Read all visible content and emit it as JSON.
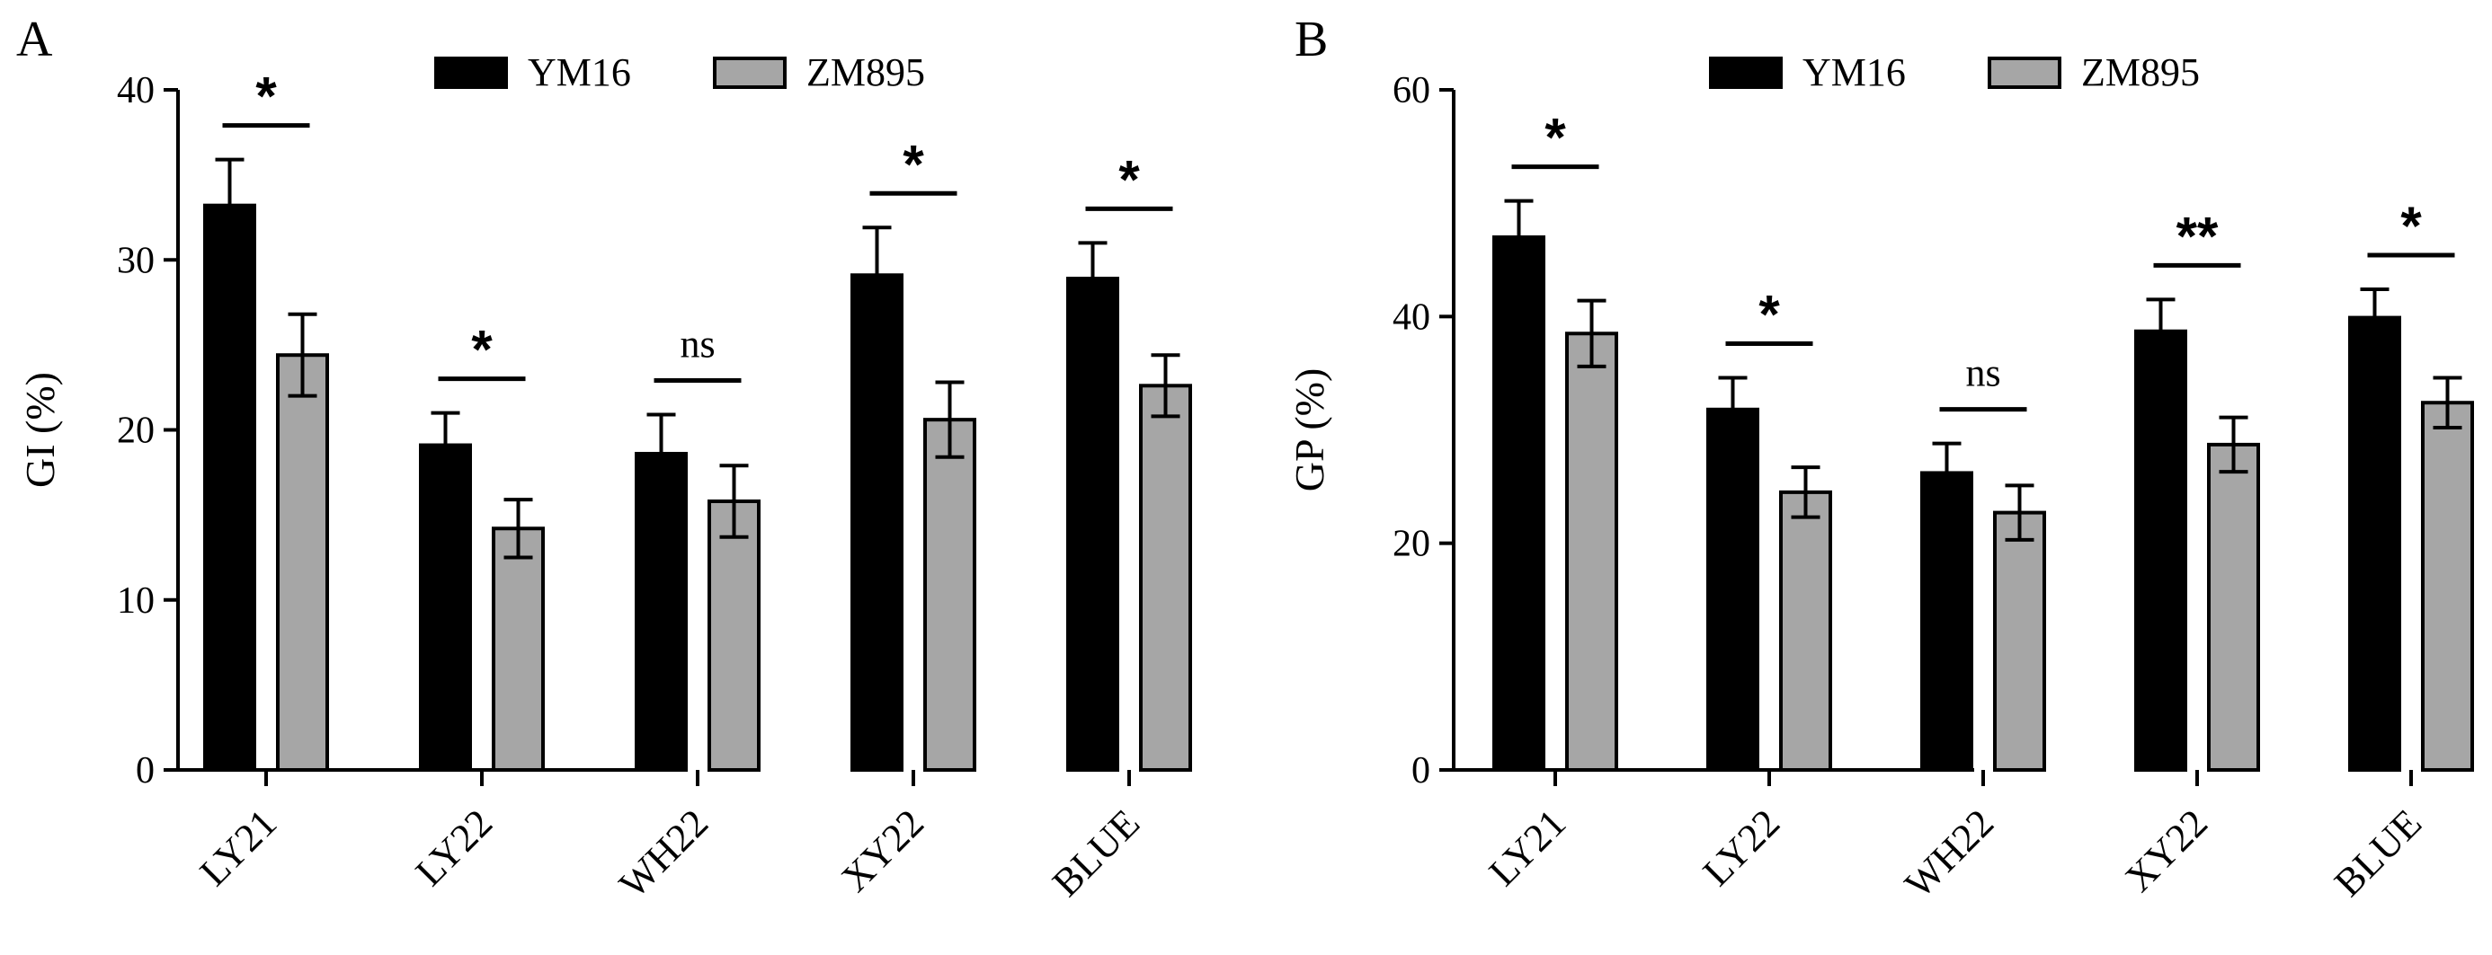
{
  "chart_data": [
    {
      "type": "bar",
      "panel_label": "A",
      "title": "",
      "xlabel": "",
      "ylabel": "GI (%)",
      "ylim": [
        0,
        40
      ],
      "yticks": [
        0,
        10,
        20,
        30,
        40
      ],
      "grid": false,
      "legend_position": "top",
      "categories": [
        "LY21",
        "LY22",
        "WH22",
        "XY22",
        "BLUE"
      ],
      "series": [
        {
          "name": "YM16",
          "color": "#000000",
          "values": [
            33.2,
            19.1,
            18.6,
            29.1,
            28.9
          ],
          "errors": [
            2.7,
            1.9,
            2.3,
            2.8,
            2.1
          ]
        },
        {
          "name": "ZM895",
          "color": "#a6a6a6",
          "values": [
            24.4,
            14.2,
            15.8,
            20.6,
            22.6
          ],
          "errors": [
            2.4,
            1.7,
            2.1,
            2.2,
            1.8
          ]
        }
      ],
      "significance": [
        "*",
        "*",
        "ns",
        "*",
        "*"
      ]
    },
    {
      "type": "bar",
      "panel_label": "B",
      "title": "",
      "xlabel": "",
      "ylabel": "GP (%)",
      "ylim": [
        0,
        60
      ],
      "yticks": [
        0,
        20,
        40,
        60
      ],
      "grid": false,
      "legend_position": "top",
      "categories": [
        "LY21",
        "LY22",
        "WH22",
        "XY22",
        "BLUE"
      ],
      "series": [
        {
          "name": "YM16",
          "color": "#000000",
          "values": [
            47,
            31.8,
            26.2,
            38.7,
            39.9
          ],
          "errors": [
            3.2,
            2.8,
            2.6,
            2.8,
            2.5
          ]
        },
        {
          "name": "ZM895",
          "color": "#a6a6a6",
          "values": [
            38.5,
            24.5,
            22.7,
            28.7,
            32.4
          ],
          "errors": [
            2.9,
            2.2,
            2.4,
            2.4,
            2.2
          ]
        }
      ],
      "significance": [
        "*",
        "*",
        "ns",
        "**",
        "*"
      ]
    }
  ]
}
